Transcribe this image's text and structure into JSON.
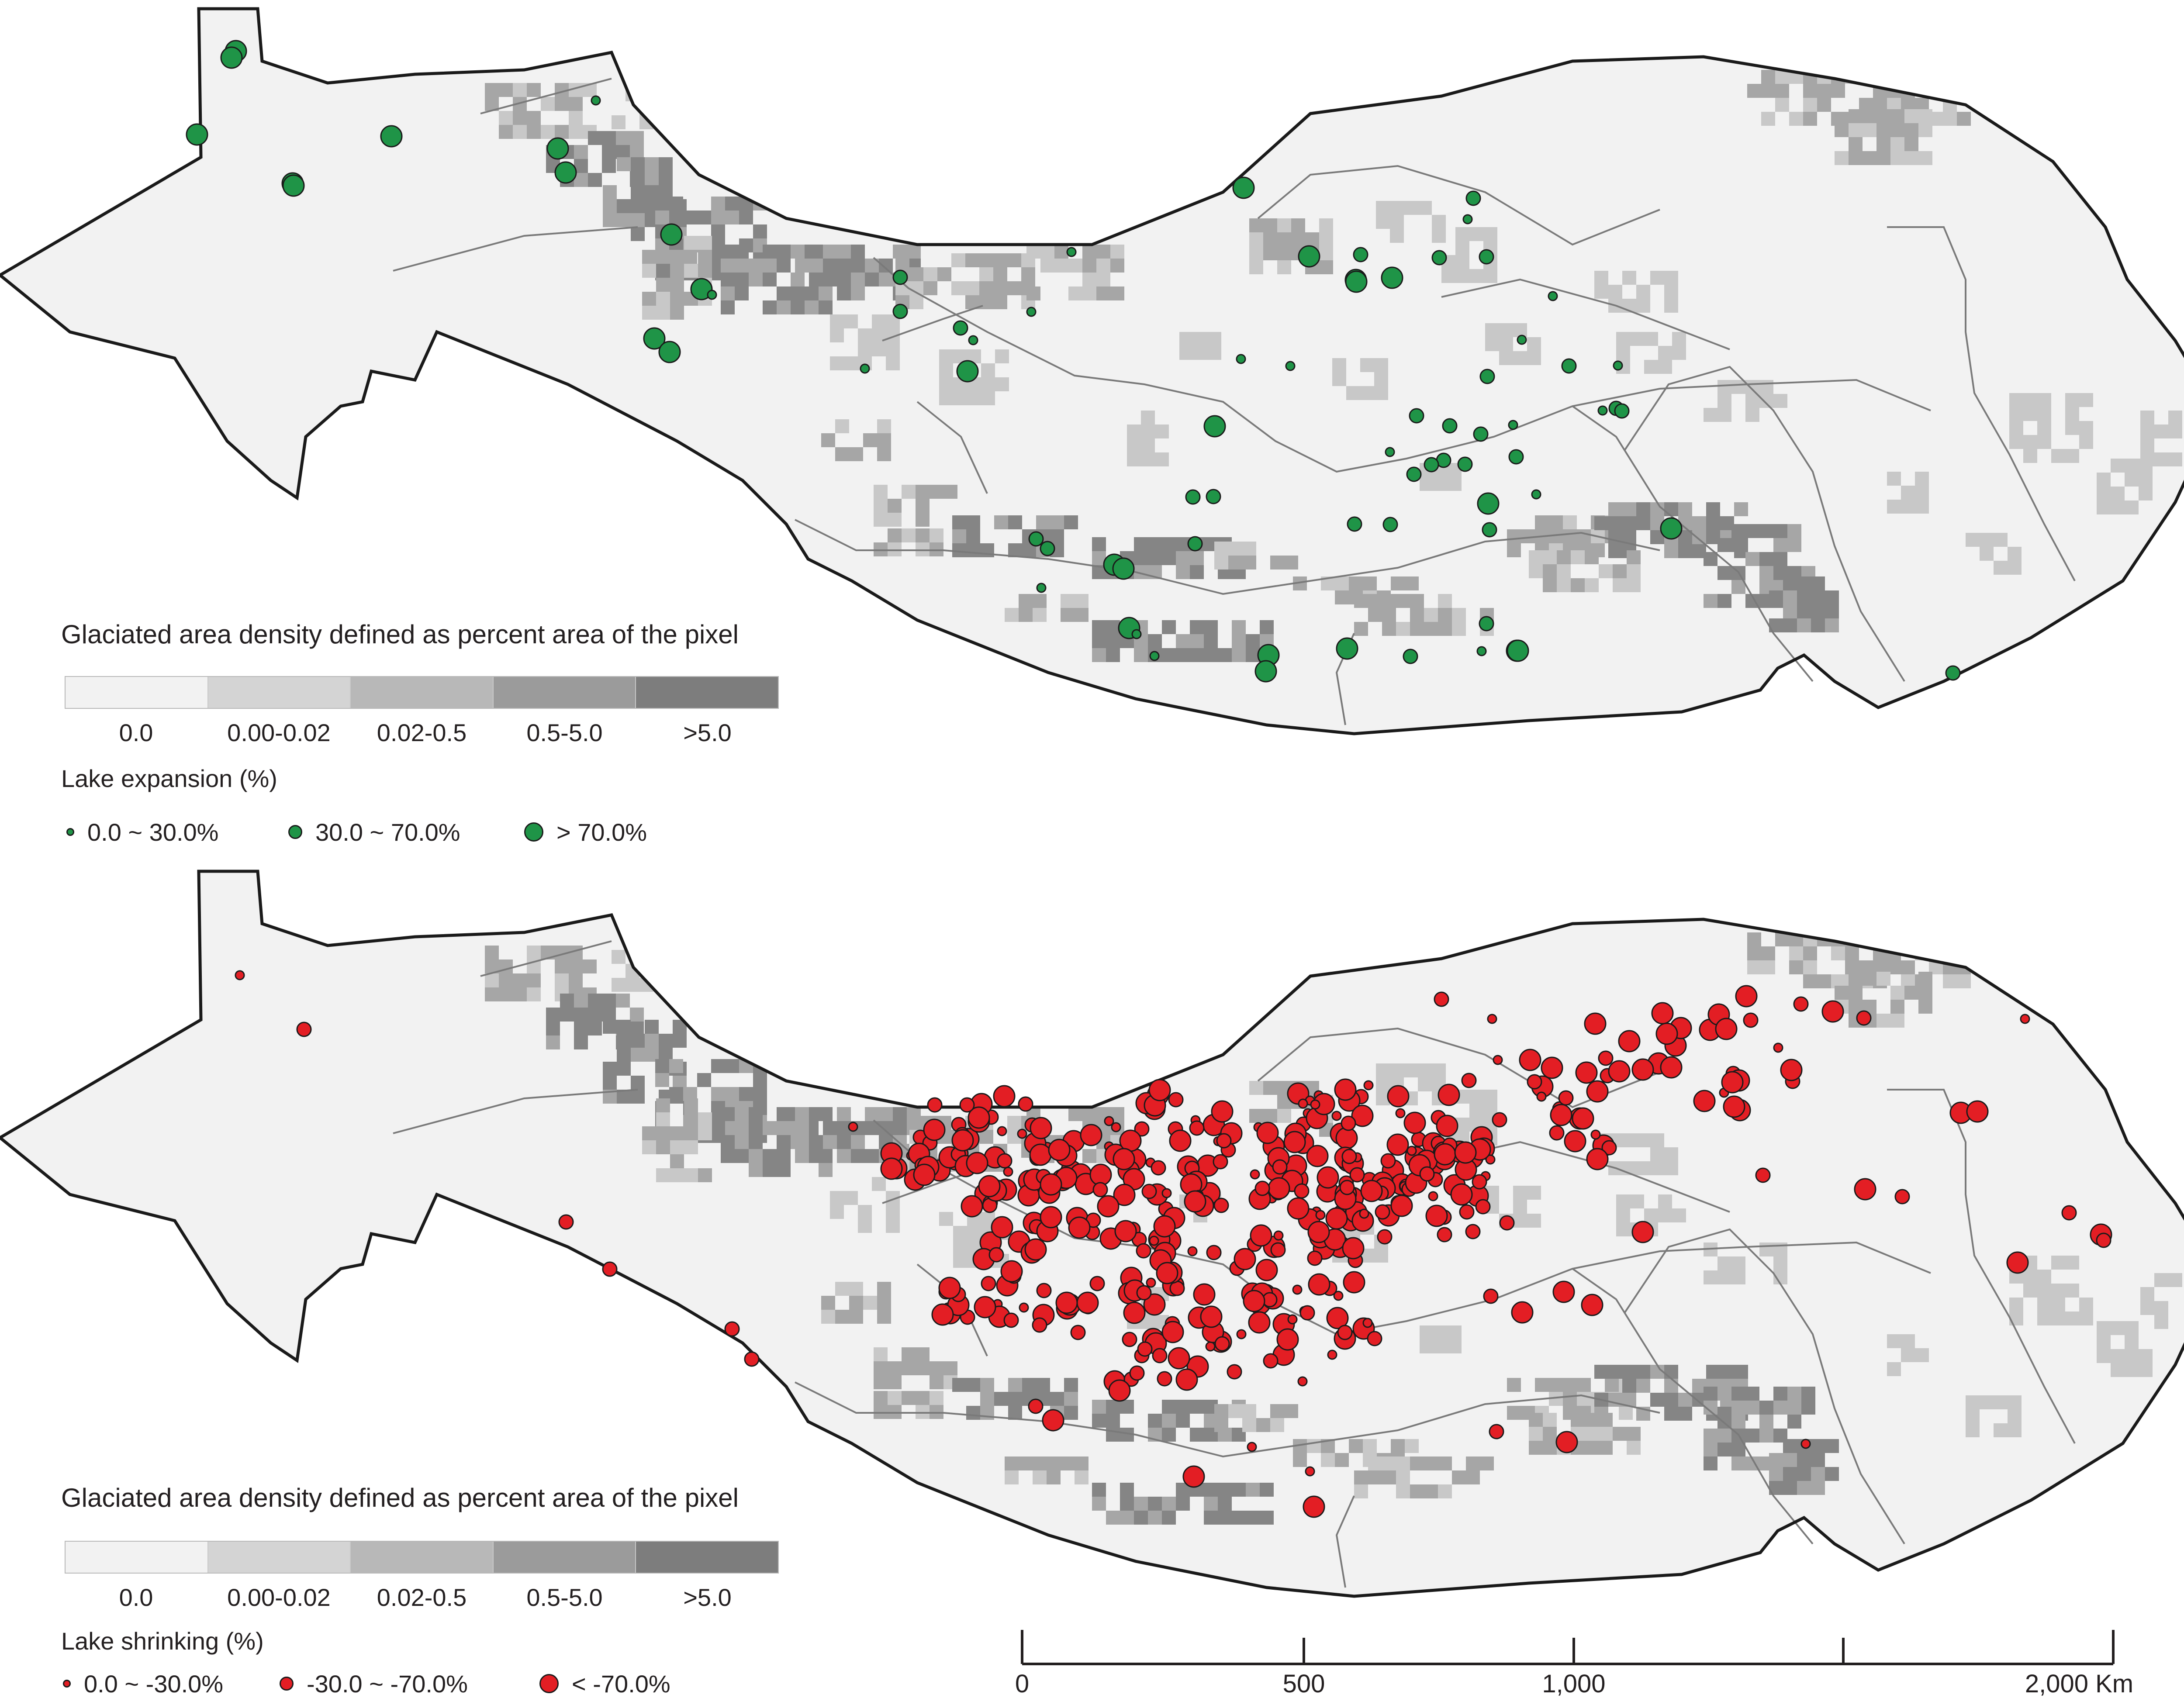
{
  "panels": [
    {
      "id": "expansion",
      "density_title": "Glaciated area density defined as percent area of the pixel",
      "lake_title": "Lake expansion (%)",
      "lake_color": "#1f9447",
      "lake_classes": [
        "0.0 ~ 30.0%",
        "30.0 ~ 70.0%",
        "> 70.0%"
      ]
    },
    {
      "id": "shrinking",
      "density_title": "Glaciated area density defined as percent area of the pixel",
      "lake_title": "Lake shrinking (%)",
      "lake_color": "#e31e24",
      "lake_classes": [
        "0.0 ~ -30.0%",
        "-30.0 ~ -70.0%",
        "< -70.0%"
      ]
    }
  ],
  "density_classes": [
    {
      "label": "0.0",
      "color": "#f2f2f2"
    },
    {
      "label": "0.00-0.02",
      "color": "#d4d4d4"
    },
    {
      "label": "0.02-0.5",
      "color": "#b8b8b8"
    },
    {
      "label": "0.5-5.0",
      "color": "#9b9b9b"
    },
    {
      "label": ">5.0",
      "color": "#7d7d7d"
    }
  ],
  "scale_bar": {
    "labels": [
      "0",
      "500",
      "1,000",
      "2,000 Km"
    ]
  },
  "colors": {
    "background": "#f2f2f2",
    "boundary": "#1a1a1a",
    "basin_lines": "#7a7a7a",
    "expansion": "#1f9447",
    "shrinking": "#e31e24"
  }
}
